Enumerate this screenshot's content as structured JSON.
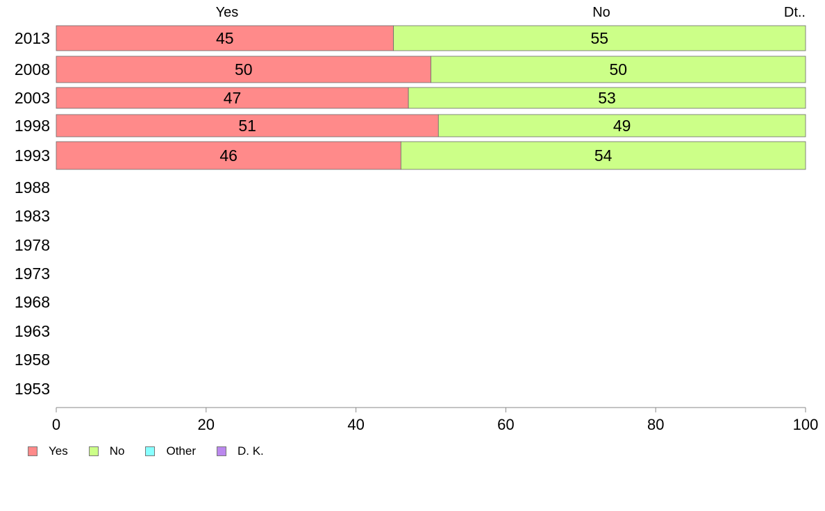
{
  "chart_data": {
    "type": "bar",
    "orientation": "horizontal",
    "stacked": true,
    "categories": [
      "2013",
      "2008",
      "2003",
      "1998",
      "1993",
      "1988",
      "1983",
      "1978",
      "1973",
      "1968",
      "1963",
      "1958",
      "1953"
    ],
    "series": [
      {
        "name": "Yes",
        "color": "#ff8a8a",
        "values": [
          45,
          50,
          47,
          51,
          46,
          null,
          null,
          null,
          null,
          null,
          null,
          null,
          null
        ]
      },
      {
        "name": "No",
        "color": "#ccff88",
        "values": [
          55,
          50,
          53,
          49,
          54,
          null,
          null,
          null,
          null,
          null,
          null,
          null,
          null
        ]
      },
      {
        "name": "Other",
        "color": "#88ffff",
        "values": [
          0,
          0,
          0,
          0,
          0,
          null,
          null,
          null,
          null,
          null,
          null,
          null,
          null
        ]
      },
      {
        "name": "D. K.",
        "color": "#bb88ee",
        "values": [
          0,
          0,
          0,
          0,
          0,
          null,
          null,
          null,
          null,
          null,
          null,
          null,
          null
        ]
      }
    ],
    "top_labels": [
      "Yes",
      "No",
      "Dt.."
    ],
    "xlim": [
      0,
      100
    ],
    "xticks": [
      0,
      20,
      40,
      60,
      80,
      100
    ],
    "grid": false,
    "legend_position": "bottom-left",
    "title": "",
    "xlabel": "",
    "ylabel": ""
  }
}
